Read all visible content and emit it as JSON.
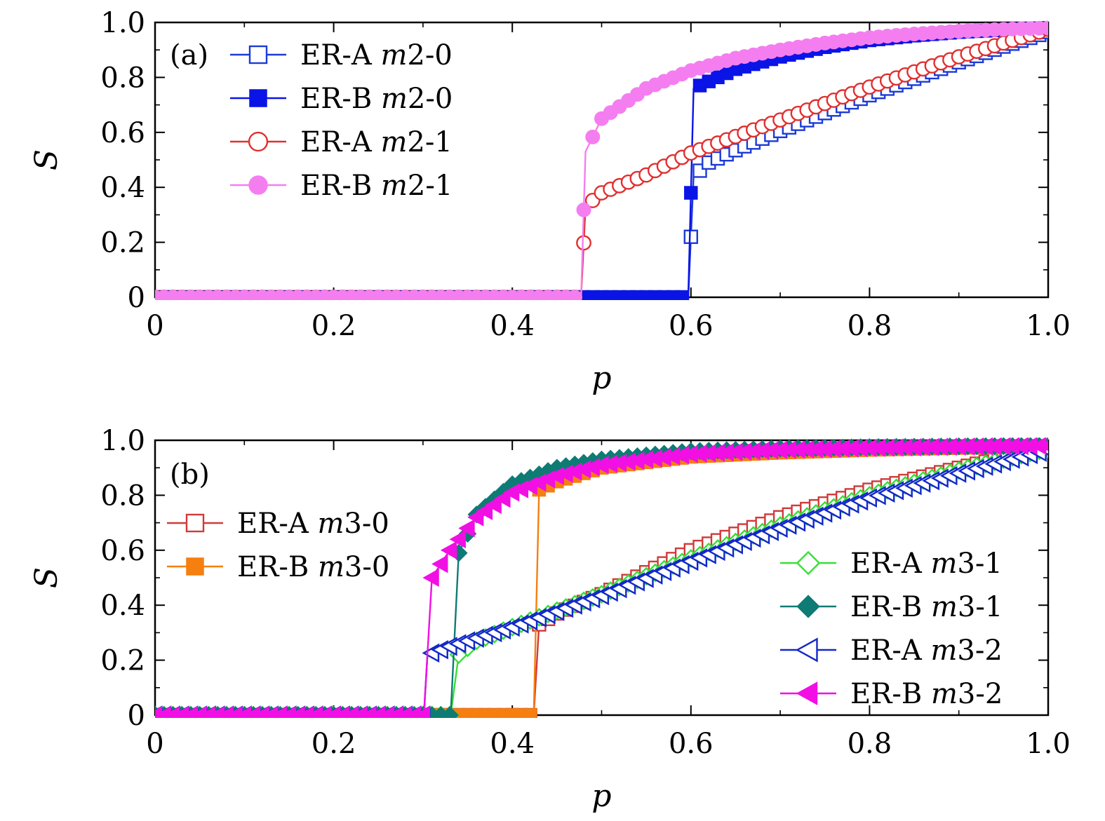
{
  "chart_data": [
    {
      "type": "line",
      "panel_label": "(a)",
      "xlabel": "p",
      "ylabel": "S",
      "xlim": [
        0,
        1
      ],
      "ylim": [
        0,
        1
      ],
      "x_ticks": [
        "0",
        "0.2",
        "0.4",
        "0.6",
        "0.8",
        "1.0"
      ],
      "y_ticks": [
        "0",
        "0.2",
        "0.4",
        "0.6",
        "0.8",
        "1.0"
      ],
      "legend_position": "top-left",
      "series": [
        {
          "name": "ER-A m2-0",
          "label_text": "ER-A",
          "label_math": "m2-0",
          "color": "#1c3bd6",
          "marker": "square",
          "filled": false,
          "dash": false,
          "pc": 0.598,
          "points": [
            [
              0.0,
              0.0
            ],
            [
              0.597,
              0.0
            ],
            [
              0.603,
              0.44
            ],
            [
              0.62,
              0.49
            ],
            [
              0.65,
              0.535
            ],
            [
              0.7,
              0.605
            ],
            [
              0.75,
              0.67
            ],
            [
              0.8,
              0.735
            ],
            [
              0.85,
              0.795
            ],
            [
              0.9,
              0.855
            ],
            [
              0.95,
              0.912
            ],
            [
              1.0,
              0.965
            ]
          ]
        },
        {
          "name": "ER-B m2-0",
          "label_text": "ER-B",
          "label_math": "m2-0",
          "color": "#0a14e6",
          "marker": "square",
          "filled": true,
          "dash": false,
          "pc": 0.598,
          "points": [
            [
              0.0,
              0.0
            ],
            [
              0.597,
              0.0
            ],
            [
              0.603,
              0.76
            ],
            [
              0.65,
              0.83
            ],
            [
              0.7,
              0.875
            ],
            [
              0.75,
              0.91
            ],
            [
              0.8,
              0.935
            ],
            [
              0.85,
              0.952
            ],
            [
              0.9,
              0.965
            ],
            [
              0.95,
              0.973
            ],
            [
              1.0,
              0.98
            ]
          ]
        },
        {
          "name": "ER-A m2-1",
          "label_text": "ER-A",
          "label_math": "m2-1",
          "color": "#e03030",
          "marker": "circle",
          "filled": false,
          "dash": false,
          "pc": 0.478,
          "points": [
            [
              0.0,
              0.0
            ],
            [
              0.477,
              0.0
            ],
            [
              0.482,
              0.33
            ],
            [
              0.5,
              0.38
            ],
            [
              0.55,
              0.445
            ],
            [
              0.6,
              0.525
            ],
            [
              0.65,
              0.585
            ],
            [
              0.7,
              0.645
            ],
            [
              0.75,
              0.705
            ],
            [
              0.8,
              0.765
            ],
            [
              0.85,
              0.82
            ],
            [
              0.9,
              0.875
            ],
            [
              0.95,
              0.925
            ],
            [
              1.0,
              0.975
            ]
          ]
        },
        {
          "name": "ER-B m2-1",
          "label_text": "ER-B",
          "label_math": "m2-1",
          "color": "#f47ef0",
          "marker": "circle",
          "filled": true,
          "dash": false,
          "pc": 0.478,
          "points": [
            [
              0.0,
              0.0
            ],
            [
              0.477,
              0.0
            ],
            [
              0.482,
              0.53
            ],
            [
              0.5,
              0.65
            ],
            [
              0.55,
              0.76
            ],
            [
              0.6,
              0.825
            ],
            [
              0.65,
              0.87
            ],
            [
              0.7,
              0.9
            ],
            [
              0.75,
              0.925
            ],
            [
              0.8,
              0.945
            ],
            [
              0.85,
              0.958
            ],
            [
              0.9,
              0.968
            ],
            [
              0.95,
              0.975
            ],
            [
              1.0,
              0.98
            ]
          ]
        }
      ]
    },
    {
      "type": "line",
      "panel_label": "(b)",
      "xlabel": "p",
      "ylabel": "S",
      "xlim": [
        0,
        1
      ],
      "ylim": [
        0,
        1
      ],
      "x_ticks": [
        "0",
        "0.2",
        "0.4",
        "0.6",
        "0.8",
        "1.0"
      ],
      "y_ticks": [
        "0",
        "0.2",
        "0.4",
        "0.6",
        "0.8",
        "1.0"
      ],
      "legend_position": "left and bottom-right",
      "series": [
        {
          "name": "ER-A m3-0",
          "label_text": "ER-A",
          "label_math": "m3-0",
          "color": "#d03a3a",
          "marker": "square",
          "filled": false,
          "dash": false,
          "pc": 0.425,
          "points": [
            [
              0.0,
              0.0
            ],
            [
              0.424,
              0.0
            ],
            [
              0.43,
              0.33
            ],
            [
              0.45,
              0.37
            ],
            [
              0.5,
              0.44
            ],
            [
              0.6,
              0.6
            ],
            [
              0.7,
              0.72
            ],
            [
              0.8,
              0.82
            ],
            [
              0.9,
              0.9
            ],
            [
              1.0,
              0.975
            ]
          ]
        },
        {
          "name": "ER-B m3-0",
          "label_text": "ER-B",
          "label_math": "m3-0",
          "color": "#f57f0f",
          "marker": "square",
          "filled": true,
          "dash": true,
          "pc": 0.425,
          "points": [
            [
              0.0,
              0.0
            ],
            [
              0.424,
              0.0
            ],
            [
              0.43,
              0.82
            ],
            [
              0.45,
              0.85
            ],
            [
              0.5,
              0.9
            ],
            [
              0.6,
              0.94
            ],
            [
              0.7,
              0.955
            ],
            [
              0.8,
              0.965
            ],
            [
              0.9,
              0.972
            ],
            [
              1.0,
              0.978
            ]
          ]
        },
        {
          "name": "ER-A m3-1",
          "label_text": "ER-A",
          "label_math": "m3-1",
          "color": "#35e135",
          "marker": "diamond",
          "filled": false,
          "dash": false,
          "pc": 0.332,
          "points": [
            [
              0.0,
              0.0
            ],
            [
              0.331,
              0.0
            ],
            [
              0.34,
              0.22
            ],
            [
              0.36,
              0.27
            ],
            [
              0.4,
              0.32
            ],
            [
              0.5,
              0.44
            ],
            [
              0.6,
              0.57
            ],
            [
              0.7,
              0.69
            ],
            [
              0.8,
              0.8
            ],
            [
              0.9,
              0.89
            ],
            [
              1.0,
              0.97
            ]
          ]
        },
        {
          "name": "ER-B m3-1",
          "label_text": "ER-B",
          "label_math": "m3-1",
          "color": "#0f7b75",
          "marker": "diamond",
          "filled": true,
          "dash": false,
          "pc": 0.332,
          "points": [
            [
              0.0,
              0.0
            ],
            [
              0.331,
              0.0
            ],
            [
              0.34,
              0.59
            ],
            [
              0.36,
              0.73
            ],
            [
              0.4,
              0.84
            ],
            [
              0.45,
              0.9
            ],
            [
              0.5,
              0.93
            ],
            [
              0.6,
              0.96
            ],
            [
              0.7,
              0.97
            ],
            [
              0.8,
              0.975
            ],
            [
              0.9,
              0.978
            ],
            [
              1.0,
              0.98
            ]
          ]
        },
        {
          "name": "ER-A m3-2",
          "label_text": "ER-A",
          "label_math": "m3-2",
          "color": "#1228c8",
          "marker": "triangle-left",
          "filled": false,
          "dash": false,
          "pc": 0.302,
          "points": [
            [
              0.0,
              0.0
            ],
            [
              0.301,
              0.0
            ],
            [
              0.305,
              0.22
            ],
            [
              0.33,
              0.25
            ],
            [
              0.4,
              0.32
            ],
            [
              0.5,
              0.435
            ],
            [
              0.6,
              0.56
            ],
            [
              0.7,
              0.68
            ],
            [
              0.8,
              0.79
            ],
            [
              0.9,
              0.88
            ],
            [
              1.0,
              0.965
            ]
          ]
        },
        {
          "name": "ER-B m3-2",
          "label_text": "ER-B",
          "label_math": "m3-2",
          "color": "#f20fe4",
          "marker": "triangle-left",
          "filled": true,
          "dash": true,
          "pc": 0.302,
          "points": [
            [
              0.0,
              0.0
            ],
            [
              0.301,
              0.0
            ],
            [
              0.31,
              0.5
            ],
            [
              0.33,
              0.6
            ],
            [
              0.36,
              0.72
            ],
            [
              0.4,
              0.81
            ],
            [
              0.45,
              0.87
            ],
            [
              0.5,
              0.91
            ],
            [
              0.6,
              0.95
            ],
            [
              0.7,
              0.965
            ],
            [
              0.8,
              0.972
            ],
            [
              0.9,
              0.977
            ],
            [
              1.0,
              0.98
            ]
          ]
        }
      ]
    }
  ]
}
